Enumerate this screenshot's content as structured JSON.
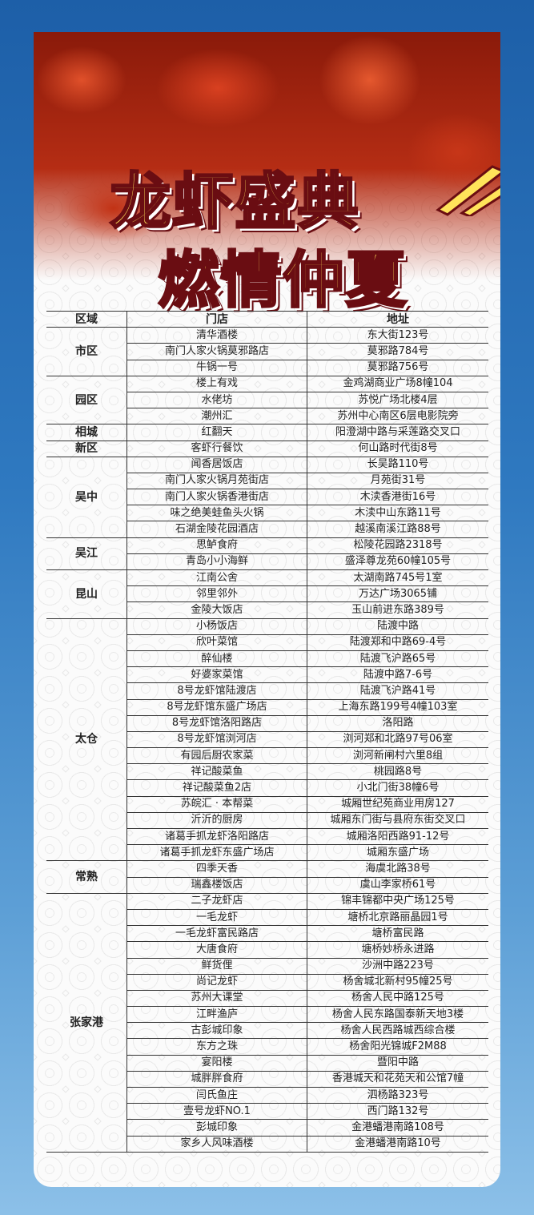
{
  "title_line1": "龙虾盛典",
  "title_line2": "燃情仲夏",
  "colors": {
    "title_fill": "#ffe45a",
    "title_outline": "#6a0d12",
    "background": "#2f79c0"
  },
  "table": {
    "headers": [
      "区域",
      "门店",
      "地址"
    ],
    "groups": [
      {
        "region": "市区",
        "rows": [
          [
            "清华酒楼",
            "东大街123号"
          ],
          [
            "南门人家火锅莫邪路店",
            "莫邪路784号"
          ],
          [
            "牛锅一号",
            "莫邪路756号"
          ]
        ]
      },
      {
        "region": "园区",
        "rows": [
          [
            "楼上有戏",
            "金鸡湖商业广场8幢104"
          ],
          [
            "水佬坊",
            "苏悦广场北楼4层"
          ],
          [
            "潮州汇",
            "苏州中心南区6层电影院旁"
          ]
        ]
      },
      {
        "region": "相城",
        "rows": [
          [
            "红翻天",
            "阳澄湖中路与采莲路交叉口"
          ]
        ]
      },
      {
        "region": "新区",
        "rows": [
          [
            "客虾行餐饮",
            "何山路时代街8号"
          ]
        ]
      },
      {
        "region": "吴中",
        "rows": [
          [
            "闻香居饭店",
            "长吴路110号"
          ],
          [
            "南门人家火锅月苑街店",
            "月苑街31号"
          ],
          [
            "南门人家火锅香港街店",
            "木渎香港街16号"
          ],
          [
            "味之绝美蛙鱼头火锅",
            "木渎中山东路11号"
          ],
          [
            "石湖金陵花园酒店",
            "越溪南溪江路88号"
          ]
        ]
      },
      {
        "region": "吴江",
        "rows": [
          [
            "思鲈食府",
            "松陵花园路2318号"
          ],
          [
            "青岛小小海鲜",
            "盛泽尊龙苑60幢105号"
          ]
        ]
      },
      {
        "region": "昆山",
        "rows": [
          [
            "江南公舍",
            "太湖南路745号1室"
          ],
          [
            "邻里邻外",
            "万达广场3065铺"
          ],
          [
            "金陵大饭店",
            "玉山前进东路389号"
          ]
        ]
      },
      {
        "region": "太仓",
        "rows": [
          [
            "小杨饭店",
            "陆渡中路"
          ],
          [
            "欣叶菜馆",
            "陆渡郑和中路69-4号"
          ],
          [
            "醉仙楼",
            "陆渡飞沪路65号"
          ],
          [
            "好婆家菜馆",
            "陆渡中路7-6号"
          ],
          [
            "8号龙虾馆陆渡店",
            "陆渡飞沪路41号"
          ],
          [
            "8号龙虾馆东盛广场店",
            "上海东路199号4幢103室"
          ],
          [
            "8号龙虾馆洛阳路店",
            "洛阳路"
          ],
          [
            "8号龙虾馆浏河店",
            "浏河郑和北路97号06室"
          ],
          [
            "有园后厨农家菜",
            "浏河新闸村六里8组"
          ],
          [
            "祥记酸菜鱼",
            "桃园路8号"
          ],
          [
            "祥记酸菜鱼2店",
            "小北门街38幢6号"
          ],
          [
            "苏皖汇 · 本帮菜",
            "城厢世纪苑商业用房127"
          ],
          [
            "沂沂的厨房",
            "城厢东门街与县府东街交叉口"
          ],
          [
            "诸葛手抓龙虾洛阳路店",
            "城厢洛阳西路91-12号"
          ],
          [
            "诸葛手抓龙虾东盛广场店",
            "城厢东盛广场"
          ]
        ]
      },
      {
        "region": "常熟",
        "rows": [
          [
            "四季天香",
            "海虞北路38号"
          ],
          [
            "瑞鑫楼饭店",
            "虞山李家桥61号"
          ]
        ]
      },
      {
        "region": "张家港",
        "rows": [
          [
            "二子龙虾店",
            "锦丰锦都中央广场125号"
          ],
          [
            "一毛龙虾",
            "塘桥北京路丽晶园1号"
          ],
          [
            "一毛龙虾富民路店",
            "塘桥富民路"
          ],
          [
            "大唐食府",
            "塘桥妙桥永进路"
          ],
          [
            "鲜货俚",
            "沙洲中路223号"
          ],
          [
            "尚记龙虾",
            "杨舍城北新村95幢25号"
          ],
          [
            "苏州大课堂",
            "杨舍人民中路125号"
          ],
          [
            "江畔渔庐",
            "杨舍人民东路国泰新天地3楼"
          ],
          [
            "古彭城印象",
            "杨舍人民西路城西综合楼"
          ],
          [
            "东方之珠",
            "杨舍阳光锦城F2M88"
          ],
          [
            "宴阳楼",
            "暨阳中路"
          ],
          [
            "城胖胖食府",
            "香港城天和花苑天和公馆7幢"
          ],
          [
            "闫氏鱼庄",
            "泗杨路323号"
          ],
          [
            "壹号龙虾NO.1",
            "西门路132号"
          ],
          [
            "彭城印象",
            "金港蟠港南路108号"
          ],
          [
            "家乡人风味酒楼",
            "金港蟠港南路10号"
          ]
        ]
      }
    ]
  }
}
